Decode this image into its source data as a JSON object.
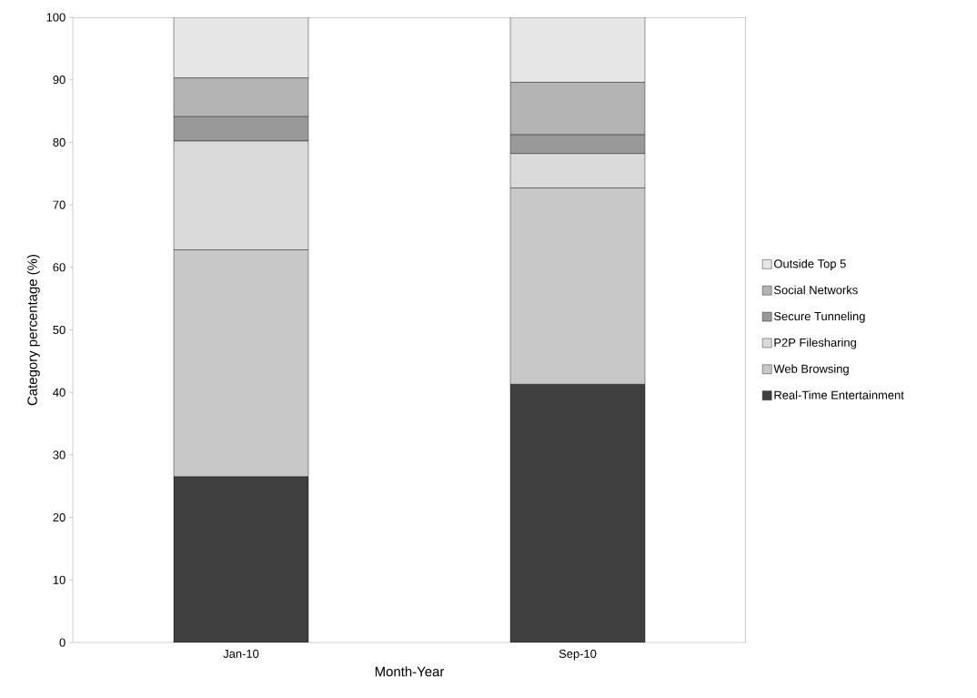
{
  "chart_data": {
    "type": "bar",
    "stacked": true,
    "xlabel": "Month-Year",
    "ylabel": "Category percentage (%)",
    "categories": [
      "Jan-10",
      "Sep-10"
    ],
    "series": [
      {
        "name": "Real-Time Entertainment",
        "color": "#404040",
        "values": [
          26.5,
          41.3
        ]
      },
      {
        "name": "Web Browsing",
        "color": "#c8c8c8",
        "values": [
          36.3,
          31.4
        ]
      },
      {
        "name": "P2P Filesharing",
        "color": "#dadada",
        "values": [
          17.4,
          5.5
        ]
      },
      {
        "name": "Secure Tunneling",
        "color": "#999999",
        "values": [
          3.9,
          3.0
        ]
      },
      {
        "name": "Social Networks",
        "color": "#b4b4b4",
        "values": [
          6.2,
          8.4
        ]
      },
      {
        "name": "Outside Top 5",
        "color": "#e6e6e6",
        "values": [
          9.7,
          10.4
        ]
      }
    ],
    "ylim": [
      0,
      100
    ],
    "yticks": [
      0,
      10,
      20,
      30,
      40,
      50,
      60,
      70,
      80,
      90,
      100
    ],
    "grid": false,
    "legend": "right"
  }
}
